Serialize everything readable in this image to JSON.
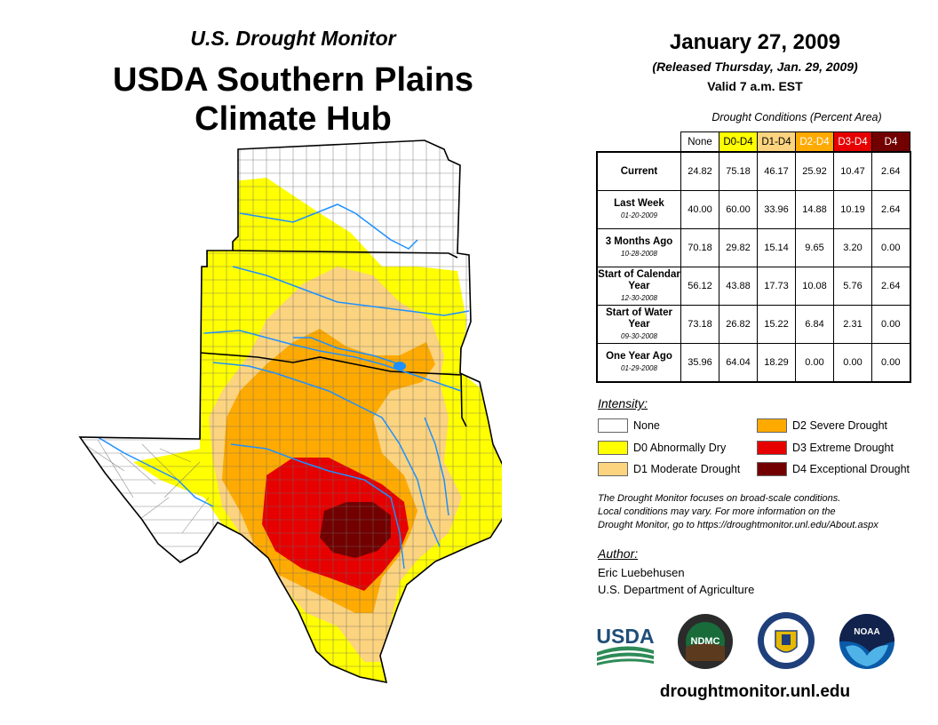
{
  "header": {
    "supertitle": "U.S. Drought Monitor",
    "title_line1": "USDA Southern Plains",
    "title_line2": "Climate Hub"
  },
  "release": {
    "date": "January 27, 2009",
    "released": "(Released Thursday, Jan. 29, 2009)",
    "valid": "Valid 7 a.m. EST"
  },
  "table": {
    "caption": "Drought Conditions (Percent Area)",
    "columns": [
      {
        "label": "None",
        "color": "#ffffff",
        "text": "#000000"
      },
      {
        "label": "D0-D4",
        "color": "#ffff00",
        "text": "#000000"
      },
      {
        "label": "D1-D4",
        "color": "#fcd37f",
        "text": "#000000"
      },
      {
        "label": "D2-D4",
        "color": "#ffaa00",
        "text": "#ffffff"
      },
      {
        "label": "D3-D4",
        "color": "#e60000",
        "text": "#ffffff"
      },
      {
        "label": "D4",
        "color": "#730000",
        "text": "#ffffff"
      }
    ],
    "rows": [
      {
        "label": "Current",
        "date": "",
        "values": [
          "24.82",
          "75.18",
          "46.17",
          "25.92",
          "10.47",
          "2.64"
        ]
      },
      {
        "label": "Last Week",
        "date": "01-20-2009",
        "values": [
          "40.00",
          "60.00",
          "33.96",
          "14.88",
          "10.19",
          "2.64"
        ]
      },
      {
        "label": "3 Months Ago",
        "date": "10-28-2008",
        "values": [
          "70.18",
          "29.82",
          "15.14",
          "9.65",
          "3.20",
          "0.00"
        ]
      },
      {
        "label": "Start of Calendar Year",
        "date": "12-30-2008",
        "values": [
          "56.12",
          "43.88",
          "17.73",
          "10.08",
          "5.76",
          "2.64"
        ]
      },
      {
        "label": "Start of Water Year",
        "date": "09-30-2008",
        "values": [
          "73.18",
          "26.82",
          "15.22",
          "6.84",
          "2.31",
          "0.00"
        ]
      },
      {
        "label": "One Year Ago",
        "date": "01-29-2008",
        "values": [
          "35.96",
          "64.04",
          "18.29",
          "0.00",
          "0.00",
          "0.00"
        ]
      }
    ]
  },
  "legend": {
    "heading": "Intensity:",
    "items": [
      {
        "label": "None",
        "color": "#ffffff"
      },
      {
        "label": "D0 Abnormally Dry",
        "color": "#ffff00"
      },
      {
        "label": "D1 Moderate Drought",
        "color": "#fcd37f"
      },
      {
        "label": "D2 Severe Drought",
        "color": "#ffaa00"
      },
      {
        "label": "D3 Extreme Drought",
        "color": "#e60000"
      },
      {
        "label": "D4 Exceptional Drought",
        "color": "#730000"
      }
    ]
  },
  "note": {
    "line1": "The Drought Monitor focuses on broad-scale conditions.",
    "line2": "Local conditions may vary. For more information on the",
    "line3": "Drought Monitor, go to https://droughtmonitor.unl.edu/About.aspx"
  },
  "author": {
    "heading": "Author:",
    "name": "Eric Luebehusen",
    "org": "U.S. Department of Agriculture"
  },
  "logos": {
    "usda": "USDA",
    "ndmc": "NDMC",
    "noaa": "NOAA"
  },
  "footer": {
    "url": "droughtmonitor.unl.edu"
  }
}
